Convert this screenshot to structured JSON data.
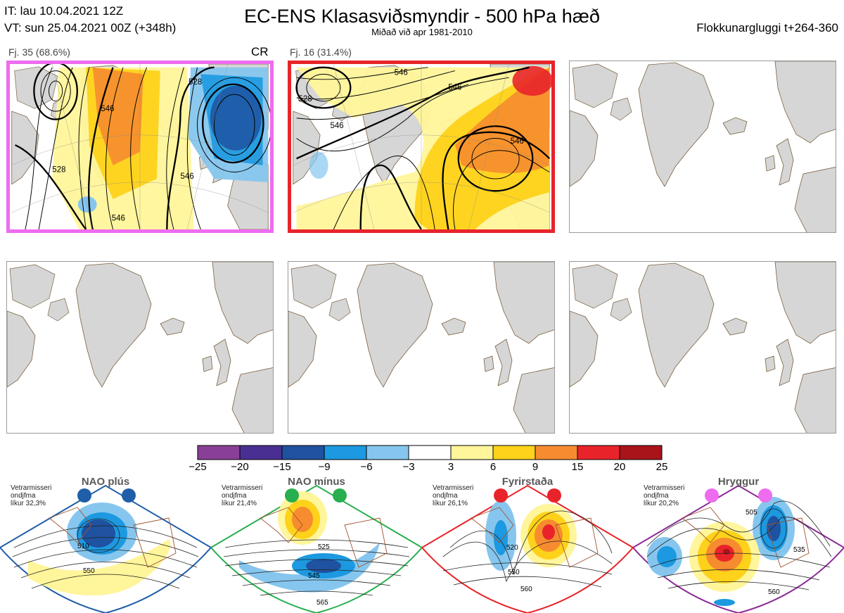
{
  "header": {
    "it_line": "IT: lau 10.04.2021 12Z",
    "vt_line": "VT: sun 25.04.2021 00Z  (+348h)",
    "title": "EC-ENS Klasasviðsmyndir - 500 hPa hæð",
    "subtitle": "Miðað við apr 1981-2010",
    "window": "Flokkunargluggi t+264-360"
  },
  "clusters": [
    {
      "label": "Fj. 35 (68.6%)",
      "regime_tag": "CR",
      "border": "#ee6cf0",
      "contour_labels": [
        "546",
        "528",
        "546",
        "546",
        "528"
      ]
    },
    {
      "label": "Fj. 16 (31.4%)",
      "regime_tag": "",
      "border": "#e8242a",
      "contour_labels": [
        "546",
        "528",
        "546",
        "546",
        "546"
      ]
    }
  ],
  "colorbar": {
    "ticks": [
      "−25",
      "−20",
      "−15",
      "−9",
      "−6",
      "−3",
      "3",
      "6",
      "9",
      "15",
      "20",
      "25"
    ],
    "colors": [
      "#8a3f96",
      "#4a2f92",
      "#1f52a0",
      "#1c99e0",
      "#86c6ee",
      "#ffffff",
      "#fff59a",
      "#fed21a",
      "#f68c2f",
      "#e8242a",
      "#a8141a"
    ]
  },
  "regimes": [
    {
      "name": "NAO plús",
      "note_1": "Vetrarmisseri",
      "note_2": "ondjfma",
      "note_3": "líkur 32,3%",
      "color": "#1f5ea8",
      "labels": [
        "510",
        "550"
      ]
    },
    {
      "name": "NAO mínus",
      "note_1": "Vetrarmisseri",
      "note_2": "ondjfma",
      "note_3": "líkur 21,4%",
      "color": "#27ae4e",
      "labels": [
        "525",
        "545",
        "565"
      ]
    },
    {
      "name": "Fyrirstaða",
      "note_1": "Vetrarmisseri",
      "note_2": "ondjfma",
      "note_3": "líkur 26,1%",
      "color": "#e8242a",
      "labels": [
        "520",
        "550",
        "560"
      ]
    },
    {
      "name": "Hryggur",
      "note_1": "Vetrarmisseri",
      "note_2": "ondjfma",
      "note_3": "líkur 20,2%",
      "color": "#8b2a96",
      "dot": "#ee6cf0",
      "labels": [
        "505",
        "535",
        "560"
      ]
    }
  ]
}
